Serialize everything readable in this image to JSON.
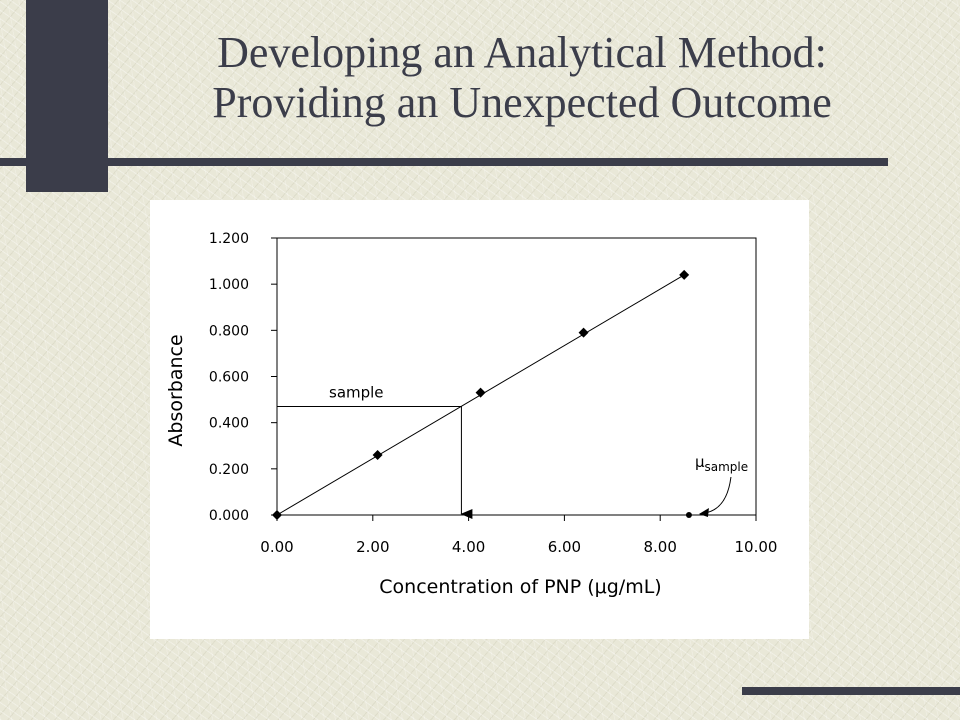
{
  "slide": {
    "title_line1": "Developing an Analytical Method:",
    "title_line2": "Providing an Unexpected Outcome"
  },
  "colors": {
    "background": "#e9e8d8",
    "accent": "#3b3d4a",
    "chart_background": "#ffffff",
    "ink": "#000000"
  },
  "chart_data": {
    "type": "scatter",
    "title": "",
    "xlabel": "Concentration of PNP (",
    "xlabel_unit": "g/mL)",
    "mu_symbol": "μ",
    "ylabel": "Absorbance",
    "xlim": [
      0,
      10
    ],
    "ylim": [
      0,
      1.2
    ],
    "x_ticks": [
      "0.00",
      "2.00",
      "4.00",
      "6.00",
      "8.00",
      "10.00"
    ],
    "y_ticks": [
      "0.000",
      "0.200",
      "0.400",
      "0.600",
      "0.800",
      "1.000",
      "1.200"
    ],
    "grid": false,
    "legend": "none",
    "points": [
      {
        "x": 0.0,
        "y": 0.0
      },
      {
        "x": 2.1,
        "y": 0.26
      },
      {
        "x": 4.25,
        "y": 0.53
      },
      {
        "x": 6.4,
        "y": 0.79
      },
      {
        "x": 8.5,
        "y": 1.04
      }
    ],
    "fit_line": {
      "x0": 0.0,
      "y0": 0.0,
      "x1": 8.5,
      "y1": 1.04
    },
    "sample_reading": {
      "label": "sample",
      "absorbance": 0.47,
      "concentration": 3.85
    },
    "mu_sample": {
      "mu": "μ",
      "label": "sample",
      "x": 8.6,
      "y": 0.0
    }
  }
}
